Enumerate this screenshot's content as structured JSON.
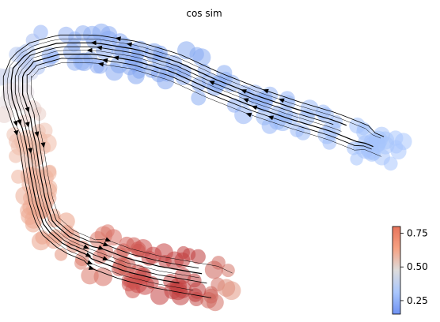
{
  "chart_data": {
    "type": "scatter",
    "title": "cos sim",
    "xlabel": "",
    "ylabel": "",
    "axes_visible": false,
    "grid": false,
    "overlay": "velocity streamlines with arrowheads",
    "colormap": "coolwarm",
    "colorbar": {
      "location": "bottom-right",
      "ticks": [
        "0.25",
        "0.50",
        "0.75"
      ],
      "tick_values": [
        0.25,
        0.5,
        0.75
      ],
      "range": [
        0.15,
        0.8
      ]
    },
    "colors": {
      "low": "#a8c4ff",
      "mid": "#f0eeed",
      "high": "#b40426",
      "point_low": "#6f92f3",
      "point_mid": "#f2cbb7",
      "point_high": "#c0282f"
    }
  }
}
